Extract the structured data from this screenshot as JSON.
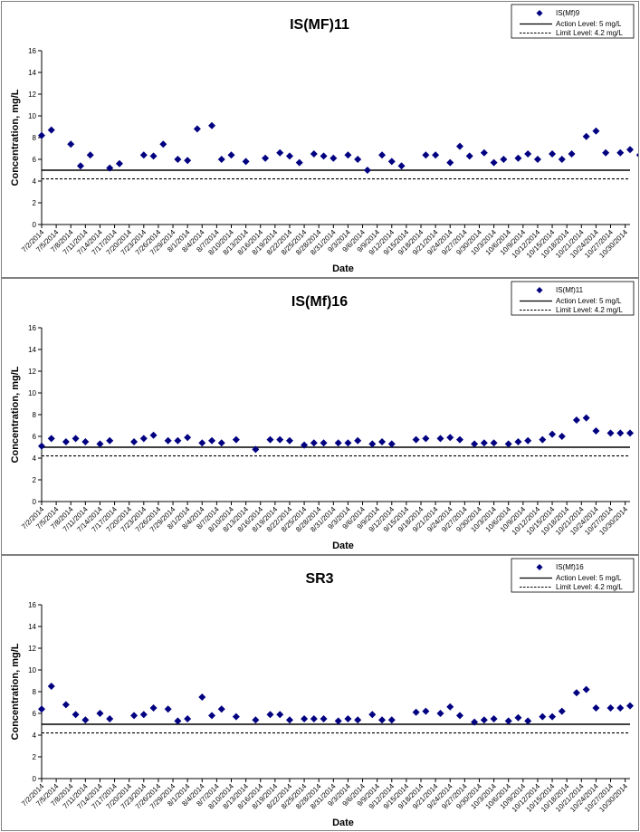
{
  "charts": [
    {
      "title": "IS(MF)11",
      "xlabel": "Date",
      "ylabel": "Concentration, mg/L",
      "legend": [
        "IS(Mf)9",
        "Action Level: 5 mg/L",
        "Limit Level: 4.2 mg/L"
      ]
    },
    {
      "title": "IS(Mf)16",
      "xlabel": "Date",
      "ylabel": "Concentration, mg/L",
      "legend": [
        "IS(Mf)11",
        "Action Level: 5 mg/L",
        "Limit Level: 4.2 mg/L"
      ]
    },
    {
      "title": "SR3",
      "xlabel": "Date",
      "ylabel": "Concentration, mg/L",
      "legend": [
        "IS(Mf)16",
        "Action Level: 5 mg/L",
        "Limit Level: 4.2 mg/L"
      ]
    }
  ],
  "chart_data": [
    {
      "type": "scatter",
      "title": "IS(MF)11",
      "xlabel": "Date",
      "ylabel": "Concentration, mg/L",
      "ylim": [
        0,
        16
      ],
      "yticks": [
        0,
        2,
        4,
        6,
        8,
        10,
        12,
        14,
        16
      ],
      "xticks": [
        "7/2/2014",
        "7/5/2014",
        "7/8/2014",
        "7/11/2014",
        "7/14/2014",
        "7/17/2014",
        "7/20/2014",
        "7/23/2014",
        "7/26/2014",
        "7/29/2014",
        "8/1/2014",
        "8/4/2014",
        "8/7/2014",
        "8/10/2014",
        "8/13/2014",
        "8/16/2014",
        "8/19/2014",
        "8/22/2014",
        "8/25/2014",
        "8/28/2014",
        "8/31/2014",
        "9/3/2014",
        "9/6/2014",
        "9/9/2014",
        "9/12/2014",
        "9/15/2014",
        "9/18/2014",
        "9/21/2014",
        "9/24/2014",
        "9/27/2014",
        "9/30/2014",
        "10/3/2014",
        "10/6/2014",
        "10/9/2014",
        "10/12/2014",
        "10/15/2014",
        "10/18/2014",
        "10/21/2014",
        "10/24/2014",
        "10/27/2014",
        "10/30/2014"
      ],
      "x_start": "7/2/2014",
      "x_end": "10/31/2014",
      "grid": false,
      "legend_position": "top-right",
      "series": [
        {
          "name": "IS(Mf)9",
          "marker": "diamond",
          "color": "#000080",
          "x": [
            "7/2/2014",
            "7/4/2014",
            "7/8/2014",
            "7/10/2014",
            "7/12/2014",
            "7/16/2014",
            "7/18/2014",
            "7/23/2014",
            "7/25/2014",
            "7/27/2014",
            "7/30/2014",
            "8/1/2014",
            "8/3/2014",
            "8/6/2014",
            "8/8/2014",
            "8/10/2014",
            "8/13/2014",
            "8/17/2014",
            "8/20/2014",
            "8/22/2014",
            "8/24/2014",
            "8/27/2014",
            "8/29/2014",
            "8/31/2014",
            "9/3/2014",
            "9/5/2014",
            "9/7/2014",
            "9/10/2014",
            "9/12/2014",
            "9/14/2014",
            "9/19/2014",
            "9/21/2014",
            "9/24/2014",
            "9/26/2014",
            "9/28/2014",
            "10/1/2014",
            "10/3/2014",
            "10/5/2014",
            "10/8/2014",
            "10/10/2014",
            "10/12/2014",
            "10/15/2014",
            "10/17/2014",
            "10/19/2014",
            "10/22/2014",
            "10/24/2014",
            "10/26/2014",
            "10/29/2014",
            "10/31/2014",
            "11/2/2014"
          ],
          "values": [
            8.2,
            8.7,
            7.4,
            5.4,
            6.4,
            5.2,
            5.6,
            6.4,
            6.3,
            7.4,
            6.0,
            5.9,
            8.8,
            9.1,
            6.0,
            6.4,
            5.8,
            6.1,
            6.6,
            6.3,
            5.7,
            6.5,
            6.3,
            6.1,
            6.4,
            6.0,
            5.0,
            6.4,
            5.8,
            5.4,
            6.4,
            6.4,
            5.7,
            7.2,
            6.3,
            6.6,
            5.7,
            6.0,
            6.1,
            6.5,
            6.0,
            6.5,
            6.0,
            6.5,
            8.1,
            8.6,
            6.6,
            6.6,
            6.9,
            6.4
          ]
        },
        {
          "name": "Action Level: 5 mg/L",
          "type": "line",
          "style": "solid",
          "value": 5
        },
        {
          "name": "Limit Level: 4.2 mg/L",
          "type": "line",
          "style": "dashed",
          "value": 4.2
        }
      ]
    },
    {
      "type": "scatter",
      "title": "IS(Mf)16",
      "xlabel": "Date",
      "ylabel": "Concentration, mg/L",
      "ylim": [
        0,
        16
      ],
      "yticks": [
        0,
        2,
        4,
        6,
        8,
        10,
        12,
        14,
        16
      ],
      "xticks": [
        "7/2/2014",
        "7/5/2014",
        "7/8/2014",
        "7/11/2014",
        "7/14/2014",
        "7/17/2014",
        "7/20/2014",
        "7/23/2014",
        "7/26/2014",
        "7/29/2014",
        "8/1/2014",
        "8/4/2014",
        "8/7/2014",
        "8/10/2014",
        "8/13/2014",
        "8/16/2014",
        "8/19/2014",
        "8/22/2014",
        "8/25/2014",
        "8/28/2014",
        "8/31/2014",
        "9/3/2014",
        "9/6/2014",
        "9/9/2014",
        "9/12/2014",
        "9/15/2014",
        "9/18/2014",
        "9/21/2014",
        "9/24/2014",
        "9/27/2014",
        "9/30/2014",
        "10/3/2014",
        "10/6/2014",
        "10/9/2014",
        "10/12/2014",
        "10/15/2014",
        "10/18/2014",
        "10/21/2014",
        "10/24/2014",
        "10/27/2014",
        "10/30/2014"
      ],
      "x_start": "7/2/2014",
      "x_end": "10/31/2014",
      "grid": false,
      "legend_position": "top-right",
      "series": [
        {
          "name": "IS(Mf)11",
          "marker": "diamond",
          "color": "#000080",
          "x": [
            "7/2/2014",
            "7/4/2014",
            "7/7/2014",
            "7/9/2014",
            "7/11/2014",
            "7/14/2014",
            "7/16/2014",
            "7/21/2014",
            "7/23/2014",
            "7/25/2014",
            "7/28/2014",
            "7/30/2014",
            "8/1/2014",
            "8/4/2014",
            "8/6/2014",
            "8/8/2014",
            "8/11/2014",
            "8/15/2014",
            "8/18/2014",
            "8/20/2014",
            "8/22/2014",
            "8/25/2014",
            "8/27/2014",
            "8/29/2014",
            "9/1/2014",
            "9/3/2014",
            "9/5/2014",
            "9/8/2014",
            "9/10/2014",
            "9/12/2014",
            "9/17/2014",
            "9/19/2014",
            "9/22/2014",
            "9/24/2014",
            "9/26/2014",
            "9/29/2014",
            "10/1/2014",
            "10/3/2014",
            "10/6/2014",
            "10/8/2014",
            "10/10/2014",
            "10/13/2014",
            "10/15/2014",
            "10/17/2014",
            "10/20/2014",
            "10/22/2014",
            "10/24/2014",
            "10/27/2014",
            "10/29/2014",
            "10/31/2014"
          ],
          "values": [
            5.1,
            5.8,
            5.5,
            5.8,
            5.5,
            5.3,
            5.6,
            5.5,
            5.8,
            6.1,
            5.6,
            5.6,
            5.9,
            5.4,
            5.6,
            5.4,
            5.7,
            4.8,
            5.7,
            5.7,
            5.6,
            5.2,
            5.4,
            5.4,
            5.4,
            5.4,
            5.6,
            5.3,
            5.5,
            5.3,
            5.7,
            5.8,
            5.8,
            5.9,
            5.7,
            5.3,
            5.4,
            5.4,
            5.3,
            5.5,
            5.6,
            5.7,
            6.2,
            6.0,
            7.5,
            7.7,
            6.5,
            6.3,
            6.3,
            6.3
          ]
        },
        {
          "name": "Action Level: 5 mg/L",
          "type": "line",
          "style": "solid",
          "value": 5
        },
        {
          "name": "Limit Level: 4.2 mg/L",
          "type": "line",
          "style": "dashed",
          "value": 4.2
        }
      ]
    },
    {
      "type": "scatter",
      "title": "SR3",
      "xlabel": "Date",
      "ylabel": "Concentration, mg/L",
      "ylim": [
        0,
        16
      ],
      "yticks": [
        0,
        2,
        4,
        6,
        8,
        10,
        12,
        14,
        16
      ],
      "xticks": [
        "7/2/2014",
        "7/5/2014",
        "7/8/2014",
        "7/11/2014",
        "7/14/2014",
        "7/17/2014",
        "7/20/2014",
        "7/23/2014",
        "7/26/2014",
        "7/29/2014",
        "8/1/2014",
        "8/4/2014",
        "8/7/2014",
        "8/10/2014",
        "8/13/2014",
        "8/16/2014",
        "8/19/2014",
        "8/22/2014",
        "8/25/2014",
        "8/28/2014",
        "8/31/2014",
        "9/3/2014",
        "9/6/2014",
        "9/9/2014",
        "9/12/2014",
        "9/15/2014",
        "9/18/2014",
        "9/21/2014",
        "9/24/2014",
        "9/27/2014",
        "9/30/2014",
        "10/3/2014",
        "10/6/2014",
        "10/9/2014",
        "10/12/2014",
        "10/15/2014",
        "10/18/2014",
        "10/21/2014",
        "10/24/2014",
        "10/27/2014",
        "10/30/2014"
      ],
      "x_start": "7/2/2014",
      "x_end": "10/31/2014",
      "grid": false,
      "legend_position": "top-right",
      "series": [
        {
          "name": "IS(Mf)16",
          "marker": "diamond",
          "color": "#000080",
          "x": [
            "7/2/2014",
            "7/4/2014",
            "7/7/2014",
            "7/9/2014",
            "7/11/2014",
            "7/14/2014",
            "7/16/2014",
            "7/21/2014",
            "7/23/2014",
            "7/25/2014",
            "7/28/2014",
            "7/30/2014",
            "8/1/2014",
            "8/4/2014",
            "8/6/2014",
            "8/8/2014",
            "8/11/2014",
            "8/15/2014",
            "8/18/2014",
            "8/20/2014",
            "8/22/2014",
            "8/25/2014",
            "8/27/2014",
            "8/29/2014",
            "9/1/2014",
            "9/3/2014",
            "9/5/2014",
            "9/8/2014",
            "9/10/2014",
            "9/12/2014",
            "9/17/2014",
            "9/19/2014",
            "9/22/2014",
            "9/24/2014",
            "9/26/2014",
            "9/29/2014",
            "10/1/2014",
            "10/3/2014",
            "10/6/2014",
            "10/8/2014",
            "10/10/2014",
            "10/13/2014",
            "10/15/2014",
            "10/17/2014",
            "10/20/2014",
            "10/22/2014",
            "10/24/2014",
            "10/27/2014",
            "10/29/2014",
            "10/31/2014"
          ],
          "values": [
            6.4,
            8.5,
            6.8,
            5.9,
            5.4,
            6.0,
            5.5,
            5.8,
            5.9,
            6.5,
            6.4,
            5.3,
            5.5,
            7.5,
            5.8,
            6.4,
            5.7,
            5.4,
            5.9,
            5.9,
            5.4,
            5.5,
            5.5,
            5.5,
            5.3,
            5.5,
            5.4,
            5.9,
            5.4,
            5.4,
            6.1,
            6.2,
            6.0,
            6.6,
            5.8,
            5.2,
            5.4,
            5.5,
            5.3,
            5.6,
            5.3,
            5.7,
            5.7,
            6.2,
            7.9,
            8.2,
            6.5,
            6.5,
            6.5,
            6.7
          ]
        },
        {
          "name": "Action Level: 5 mg/L",
          "type": "line",
          "style": "solid",
          "value": 5
        },
        {
          "name": "Limit Level: 4.2 mg/L",
          "type": "line",
          "style": "dashed",
          "value": 4.2
        }
      ]
    }
  ]
}
